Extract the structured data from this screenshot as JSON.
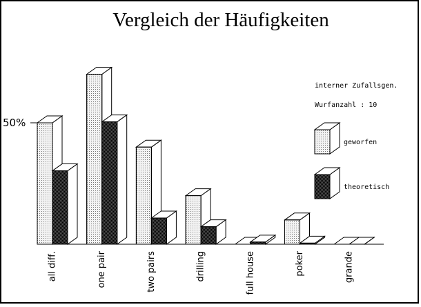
{
  "chart_data": {
    "type": "bar3d",
    "title": "Vergleich der Häufigkeiten",
    "annotations": [
      "interner Zufallsgen.",
      "Wurfanzahl : 10"
    ],
    "categories": [
      "all diff.",
      "one pair",
      "two pairs",
      "drilling",
      "full house",
      "poker",
      "grande"
    ],
    "series": [
      {
        "name": "geworfen",
        "color": "#f2f2f2",
        "values": [
          50,
          70,
          40,
          20,
          0,
          10,
          0
        ]
      },
      {
        "name": "theoretisch",
        "color": "#555555",
        "values": [
          30.24,
          50.4,
          10.8,
          7.2,
          0.9,
          0.45,
          0.01
        ]
      }
    ],
    "ylim": [
      0,
      80
    ],
    "yticks": [
      {
        "value": 50,
        "label": "50%"
      }
    ]
  }
}
